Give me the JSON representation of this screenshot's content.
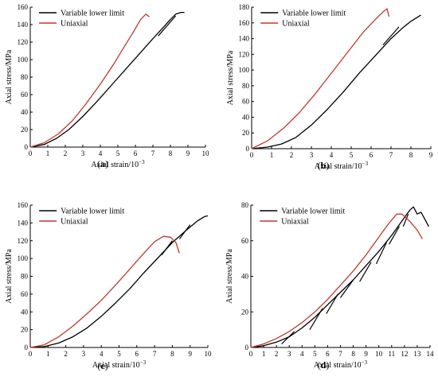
{
  "colors": {
    "cyclic": "#000000",
    "uniaxial": "#c0392b",
    "axis": "#000000"
  },
  "chart_data": [
    {
      "type": "line",
      "panel_label": "(a)",
      "panel_letter": "a",
      "xlabel": "Axial strain/10",
      "xlabel_exp": "−3",
      "ylabel": "Axial stress/MPa",
      "xlim": [
        0,
        10
      ],
      "ylim": [
        0,
        160
      ],
      "xticks": [
        0,
        1,
        2,
        3,
        4,
        5,
        6,
        7,
        8,
        9,
        10
      ],
      "yticks": [
        0,
        20,
        40,
        60,
        80,
        100,
        120,
        140,
        160
      ],
      "grid": false,
      "legend": "top-right",
      "series": [
        {
          "name": "Variable lower limit",
          "style": "cyclic",
          "x": [
            0,
            0.8,
            1.5,
            2.2,
            3.0,
            3.8,
            4.6,
            5.4,
            6.2,
            7.0,
            7.6,
            8.0,
            8.3,
            8.6,
            8.8
          ],
          "y": [
            0,
            3,
            10,
            20,
            35,
            52,
            70,
            88,
            106,
            124,
            137,
            146,
            152,
            154,
            154
          ],
          "loops": [
            {
              "from": [
                8.3,
                150
              ],
              "to": [
                7.3,
                127
              ]
            }
          ]
        },
        {
          "name": "Uniaxial",
          "style": "uniaxial",
          "x": [
            0,
            0.8,
            1.6,
            2.4,
            3.2,
            4.0,
            4.8,
            5.4,
            5.9,
            6.3,
            6.6,
            6.8
          ],
          "y": [
            0,
            5,
            15,
            30,
            50,
            72,
            96,
            116,
            132,
            146,
            152,
            149
          ]
        }
      ]
    },
    {
      "type": "line",
      "panel_label": "(b)",
      "panel_letter": "b",
      "xlabel": "Axial strain/10",
      "xlabel_exp": "−3",
      "ylabel": "Axial stress/MPa",
      "xlim": [
        0,
        9
      ],
      "ylim": [
        0,
        180
      ],
      "xticks": [
        0,
        1,
        2,
        3,
        4,
        5,
        6,
        7,
        8,
        9
      ],
      "yticks": [
        0,
        20,
        40,
        60,
        80,
        100,
        120,
        140,
        160,
        180
      ],
      "grid": false,
      "legend": "top-right",
      "series": [
        {
          "name": "Variable lower limit",
          "style": "cyclic",
          "x": [
            0,
            0.8,
            1.5,
            2.2,
            3.0,
            3.8,
            4.6,
            5.4,
            6.2,
            7.0,
            7.6,
            8.0,
            8.5
          ],
          "y": [
            0,
            2,
            6,
            14,
            30,
            50,
            72,
            96,
            118,
            140,
            154,
            162,
            170
          ],
          "loops": [
            {
              "from": [
                7.4,
                155
              ],
              "to": [
                6.6,
                132
              ]
            }
          ]
        },
        {
          "name": "Uniaxial",
          "style": "uniaxial",
          "x": [
            0,
            0.8,
            1.6,
            2.4,
            3.2,
            4.0,
            4.8,
            5.6,
            6.2,
            6.6,
            6.8,
            6.9
          ],
          "y": [
            0,
            10,
            26,
            46,
            70,
            96,
            122,
            148,
            164,
            174,
            178,
            168
          ]
        }
      ]
    },
    {
      "type": "line",
      "panel_label": "(c)",
      "panel_letter": "c",
      "xlabel": "Axial strain/10",
      "xlabel_exp": "−3",
      "ylabel": "Axial stress/MPa",
      "xlim": [
        0,
        10
      ],
      "ylim": [
        0,
        160
      ],
      "xticks": [
        0,
        1,
        2,
        3,
        4,
        5,
        6,
        7,
        8,
        9,
        10
      ],
      "yticks": [
        0,
        20,
        40,
        60,
        80,
        100,
        120,
        140,
        160
      ],
      "grid": false,
      "legend": "top-right",
      "series": [
        {
          "name": "Variable lower limit",
          "style": "cyclic",
          "x": [
            0,
            0.8,
            1.6,
            2.4,
            3.2,
            4.0,
            4.8,
            5.6,
            6.4,
            7.2,
            8.0,
            8.8,
            9.4,
            9.8,
            10.0
          ],
          "y": [
            0,
            1,
            5,
            12,
            22,
            35,
            50,
            66,
            84,
            101,
            118,
            132,
            142,
            147,
            148
          ],
          "loops": [
            {
              "from": [
                9.0,
                138
              ],
              "to": [
                8.4,
                122
              ]
            },
            {
              "from": [
                8.0,
                120
              ],
              "to": [
                7.4,
                104
              ]
            }
          ]
        },
        {
          "name": "Uniaxial",
          "style": "uniaxial",
          "x": [
            0,
            0.8,
            1.6,
            2.4,
            3.2,
            4.0,
            4.8,
            5.6,
            6.4,
            7.0,
            7.5,
            7.9,
            8.2,
            8.4
          ],
          "y": [
            0,
            3,
            12,
            24,
            38,
            53,
            70,
            88,
            106,
            119,
            125,
            124,
            118,
            106
          ]
        }
      ]
    },
    {
      "type": "line",
      "panel_label": "(d)",
      "panel_letter": "d",
      "xlabel": "Axial strain/10",
      "xlabel_exp": "−3",
      "ylabel": "Axial stress/MPa",
      "xlim": [
        0,
        14
      ],
      "ylim": [
        0,
        80
      ],
      "xticks": [
        0,
        1,
        2,
        3,
        4,
        5,
        6,
        7,
        8,
        9,
        10,
        11,
        12,
        13,
        14
      ],
      "yticks": [
        0,
        20,
        40,
        60,
        80
      ],
      "grid": false,
      "legend": "top-right",
      "series": [
        {
          "name": "Variable lower limit",
          "style": "cyclic",
          "x": [
            0,
            1.0,
            2.0,
            3.0,
            4.0,
            5.0,
            6.0,
            7.0,
            8.0,
            9.0,
            10.0,
            11.0,
            11.8,
            12.4,
            12.7,
            13.0,
            13.3,
            13.6,
            13.9
          ],
          "y": [
            0,
            1,
            3,
            6,
            11,
            17,
            24,
            31,
            38,
            46,
            54,
            63,
            71,
            77,
            79,
            75,
            76,
            72,
            68
          ],
          "loops": [
            {
              "from": [
                3.4,
                9
              ],
              "to": [
                2.4,
                2
              ]
            },
            {
              "from": [
                5.6,
                22
              ],
              "to": [
                4.6,
                10
              ]
            },
            {
              "from": [
                6.8,
                30
              ],
              "to": [
                5.9,
                19
              ]
            },
            {
              "from": [
                8.0,
                38
              ],
              "to": [
                7.0,
                28
              ]
            },
            {
              "from": [
                9.4,
                48
              ],
              "to": [
                8.5,
                37
              ]
            },
            {
              "from": [
                10.6,
                59
              ],
              "to": [
                9.8,
                47
              ]
            },
            {
              "from": [
                11.6,
                68
              ],
              "to": [
                10.8,
                58
              ]
            },
            {
              "from": [
                12.3,
                75
              ],
              "to": [
                11.9,
                68
              ]
            }
          ]
        },
        {
          "name": "Uniaxial",
          "style": "uniaxial",
          "x": [
            0,
            1.0,
            2.0,
            3.0,
            4.0,
            5.0,
            6.0,
            7.0,
            8.0,
            9.0,
            10.0,
            10.8,
            11.4,
            11.8,
            12.4,
            13.0,
            13.4
          ],
          "y": [
            0,
            2,
            5,
            9,
            14,
            20,
            27,
            35,
            43,
            52,
            62,
            70,
            75,
            75,
            71,
            66,
            61
          ]
        }
      ]
    }
  ]
}
